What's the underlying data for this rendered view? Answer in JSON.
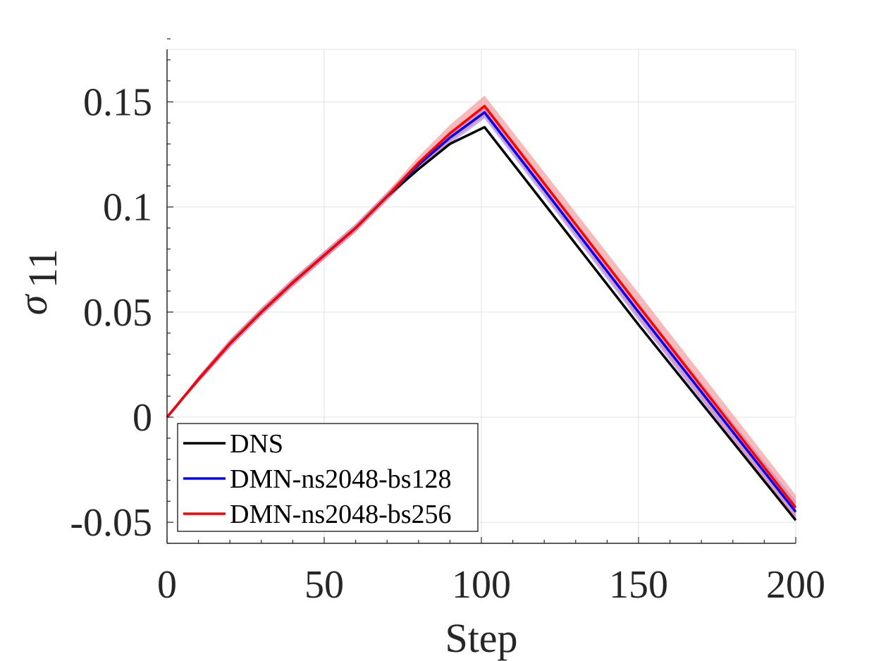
{
  "chart_data": {
    "type": "line",
    "xlabel": "Step",
    "ylabel": "σ",
    "ylabel_subscript": "11",
    "xlim": [
      0,
      200
    ],
    "ylim": [
      -0.06,
      0.175
    ],
    "xticks": [
      0,
      50,
      100,
      150,
      200
    ],
    "xtick_labels": [
      "0",
      "50",
      "100",
      "150",
      "200"
    ],
    "yticks": [
      -0.05,
      0,
      0.05,
      0.1,
      0.15
    ],
    "ytick_labels": [
      "-0.05",
      "0",
      "0.05",
      "0.1",
      "0.15"
    ],
    "grid": true,
    "legend_position": "bottom-left",
    "series": [
      {
        "name": "DNS",
        "color": "#000000",
        "band": null,
        "points": [
          [
            0,
            0
          ],
          [
            10,
            0.018
          ],
          [
            20,
            0.035
          ],
          [
            30,
            0.05
          ],
          [
            40,
            0.064
          ],
          [
            50,
            0.077
          ],
          [
            60,
            0.09
          ],
          [
            70,
            0.105
          ],
          [
            80,
            0.118
          ],
          [
            90,
            0.13
          ],
          [
            101,
            0.138
          ],
          [
            150,
            0.044
          ],
          [
            200,
            -0.049
          ]
        ]
      },
      {
        "name": "DMN-ns2048-bs128",
        "color": "#0000ff",
        "band": {
          "color": "#8080ff",
          "half_width": [
            0,
            0.0015,
            0.002,
            0.002,
            0.002,
            0.002,
            0.002,
            0.002,
            0.002,
            0.003,
            0.003,
            0.004,
            0.005
          ]
        },
        "points": [
          [
            0,
            0
          ],
          [
            10,
            0.018
          ],
          [
            20,
            0.035
          ],
          [
            30,
            0.05
          ],
          [
            40,
            0.064
          ],
          [
            50,
            0.077
          ],
          [
            60,
            0.09
          ],
          [
            70,
            0.105
          ],
          [
            80,
            0.12
          ],
          [
            90,
            0.133
          ],
          [
            101,
            0.145
          ],
          [
            150,
            0.05
          ],
          [
            200,
            -0.045
          ]
        ]
      },
      {
        "name": "DMN-ns2048-bs256",
        "color": "#ff0000",
        "band": {
          "color": "#f08080",
          "half_width": [
            0,
            0.0015,
            0.002,
            0.002,
            0.002,
            0.002,
            0.002,
            0.002,
            0.003,
            0.004,
            0.005,
            0.006,
            0.006
          ]
        },
        "points": [
          [
            0,
            0
          ],
          [
            10,
            0.018
          ],
          [
            20,
            0.035
          ],
          [
            30,
            0.05
          ],
          [
            40,
            0.064
          ],
          [
            50,
            0.077
          ],
          [
            60,
            0.09
          ],
          [
            70,
            0.105
          ],
          [
            80,
            0.121
          ],
          [
            90,
            0.135
          ],
          [
            101,
            0.148
          ],
          [
            150,
            0.053
          ],
          [
            200,
            -0.043
          ]
        ]
      }
    ]
  }
}
